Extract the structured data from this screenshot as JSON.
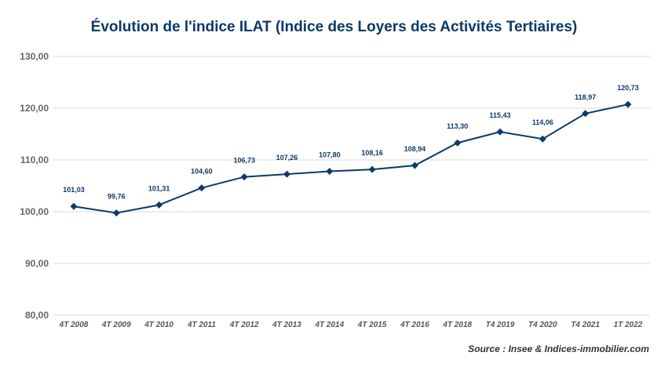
{
  "title": "Évolution de l'indice ILAT (Indice des Loyers des Activités Tertiaires)",
  "source": "Source : Insee & Indices-immobilier.com",
  "colors": {
    "line": "#0d3a66",
    "grid": "#d9d9d9",
    "axis": "#666666"
  },
  "chart_data": {
    "type": "line",
    "title": "Évolution de l'indice ILAT (Indice des Loyers des Activités Tertiaires)",
    "categories": [
      "4T 2008",
      "4T 2009",
      "4T 2010",
      "4T 2011",
      "4T 2012",
      "4T 2013",
      "4T 2014",
      "4T 2015",
      "4T 2016",
      "4T 2018",
      "T4 2019",
      "T4 2020",
      "T4 2021",
      "1T 2022"
    ],
    "values": [
      101.03,
      99.76,
      101.31,
      104.6,
      106.73,
      107.26,
      107.8,
      108.16,
      108.94,
      113.3,
      115.43,
      114.06,
      118.97,
      120.73
    ],
    "data_labels": [
      "101,03",
      "99,76",
      "101,31",
      "104,60",
      "106,73",
      "107,26",
      "107,80",
      "108,16",
      "108,94",
      "113,30",
      "115,43",
      "114,06",
      "118,97",
      "120,73"
    ],
    "ylim": [
      80,
      130
    ],
    "yticks": [
      80,
      90,
      100,
      110,
      120,
      130
    ],
    "ytick_labels": [
      "80,00",
      "90,00",
      "100,00",
      "110,00",
      "120,00",
      "130,00"
    ],
    "marker": "diamond",
    "grid": true,
    "xlabel": "",
    "ylabel": ""
  }
}
